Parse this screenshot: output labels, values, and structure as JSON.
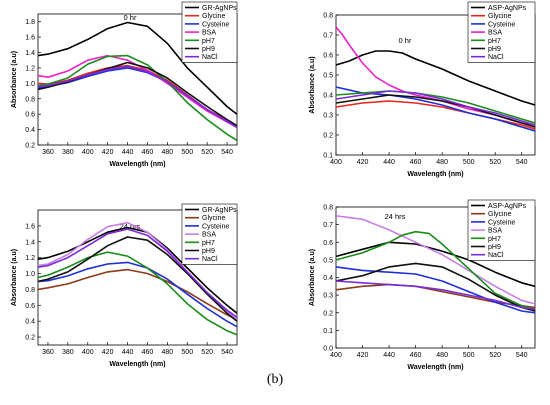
{
  "figure": {
    "label": "(b)"
  },
  "chart_data": [
    {
      "type": "line",
      "title": "0 hr",
      "xlabel": "Wavelength (nm)",
      "ylabel": "Absorbance (a.u)",
      "xlim": [
        350,
        550
      ],
      "ylim": [
        0.2,
        1.9
      ],
      "xticks": [
        360,
        380,
        400,
        420,
        440,
        460,
        480,
        500,
        520,
        540
      ],
      "yticks": [
        0.2,
        0.4,
        0.6,
        0.8,
        1.0,
        1.2,
        1.4,
        1.6,
        1.8
      ],
      "ytick_decimals": 1,
      "legend_position": "top-right",
      "series": [
        {
          "name": "GR-AgNPs",
          "color": "#000000",
          "x": [
            350,
            360,
            380,
            400,
            420,
            440,
            460,
            480,
            500,
            520,
            540,
            550
          ],
          "y": [
            1.36,
            1.38,
            1.45,
            1.57,
            1.71,
            1.79,
            1.74,
            1.52,
            1.2,
            0.95,
            0.7,
            0.6
          ]
        },
        {
          "name": "Glycine",
          "color": "#e8251d",
          "x": [
            350,
            360,
            380,
            400,
            420,
            440,
            460,
            480,
            500,
            520,
            540,
            550
          ],
          "y": [
            1.0,
            0.99,
            1.04,
            1.13,
            1.2,
            1.23,
            1.17,
            1.04,
            0.85,
            0.66,
            0.52,
            0.44
          ]
        },
        {
          "name": "Cysteine",
          "color": "#1f2fd6",
          "x": [
            350,
            360,
            380,
            400,
            420,
            440,
            460,
            480,
            500,
            520,
            540,
            550
          ],
          "y": [
            0.94,
            0.96,
            1.01,
            1.09,
            1.16,
            1.2,
            1.14,
            1.02,
            0.84,
            0.66,
            0.5,
            0.43
          ]
        },
        {
          "name": "BSA",
          "color": "#f020c8",
          "x": [
            350,
            360,
            380,
            400,
            420,
            440,
            460,
            480,
            500,
            520,
            540,
            550
          ],
          "y": [
            1.1,
            1.08,
            1.16,
            1.3,
            1.36,
            1.3,
            1.17,
            1.0,
            0.82,
            0.64,
            0.5,
            0.43
          ]
        },
        {
          "name": "pH7",
          "color": "#1a8c1a",
          "x": [
            350,
            360,
            380,
            400,
            420,
            440,
            460,
            480,
            500,
            520,
            540,
            550
          ],
          "y": [
            0.97,
            0.99,
            1.07,
            1.25,
            1.35,
            1.36,
            1.24,
            1.02,
            0.75,
            0.53,
            0.34,
            0.26
          ]
        },
        {
          "name": "pH9",
          "color": "#111111",
          "x": [
            350,
            360,
            380,
            400,
            420,
            440,
            460,
            480,
            500,
            520,
            540,
            550
          ],
          "y": [
            0.92,
            0.95,
            1.02,
            1.11,
            1.19,
            1.27,
            1.2,
            1.07,
            0.88,
            0.7,
            0.53,
            0.45
          ]
        },
        {
          "name": "NaCl",
          "color": "#7b2bd8",
          "x": [
            350,
            360,
            380,
            400,
            420,
            440,
            460,
            480,
            500,
            520,
            540,
            550
          ],
          "y": [
            0.96,
            0.97,
            1.03,
            1.11,
            1.18,
            1.22,
            1.15,
            1.02,
            0.84,
            0.66,
            0.51,
            0.43
          ]
        }
      ]
    },
    {
      "type": "line",
      "title": "0 hr",
      "xlabel": "Wavelength (nm)",
      "ylabel": "Absorbance (a.u)",
      "xlim": [
        400,
        550
      ],
      "ylim": [
        0.1,
        0.8
      ],
      "xticks": [
        400,
        420,
        440,
        460,
        480,
        500,
        520,
        540
      ],
      "yticks": [
        0.1,
        0.2,
        0.3,
        0.4,
        0.5,
        0.6,
        0.7,
        0.8
      ],
      "ytick_decimals": 1,
      "legend_position": "top-right",
      "series": [
        {
          "name": "ASP-AgNPs",
          "color": "#000000",
          "x": [
            400,
            410,
            420,
            430,
            440,
            450,
            460,
            480,
            500,
            520,
            540,
            550
          ],
          "y": [
            0.55,
            0.57,
            0.6,
            0.62,
            0.62,
            0.61,
            0.58,
            0.53,
            0.47,
            0.42,
            0.37,
            0.35
          ]
        },
        {
          "name": "Glycine",
          "color": "#e8251d",
          "x": [
            400,
            420,
            440,
            460,
            480,
            500,
            520,
            540,
            550
          ],
          "y": [
            0.34,
            0.36,
            0.37,
            0.36,
            0.34,
            0.31,
            0.28,
            0.25,
            0.23
          ]
        },
        {
          "name": "Cysteine",
          "color": "#1f2fd6",
          "x": [
            400,
            420,
            440,
            460,
            480,
            500,
            520,
            540,
            550
          ],
          "y": [
            0.44,
            0.41,
            0.4,
            0.38,
            0.35,
            0.31,
            0.28,
            0.24,
            0.22
          ]
        },
        {
          "name": "BSA",
          "color": "#f020c8",
          "x": [
            400,
            405,
            410,
            420,
            430,
            440,
            450,
            460,
            480,
            500,
            520,
            540,
            550
          ],
          "y": [
            0.74,
            0.7,
            0.65,
            0.56,
            0.49,
            0.45,
            0.42,
            0.4,
            0.37,
            0.33,
            0.3,
            0.26,
            0.25
          ]
        },
        {
          "name": "pH7",
          "color": "#1a8c1a",
          "x": [
            400,
            420,
            440,
            460,
            480,
            500,
            520,
            540,
            550
          ],
          "y": [
            0.4,
            0.41,
            0.42,
            0.41,
            0.39,
            0.36,
            0.32,
            0.28,
            0.26
          ]
        },
        {
          "name": "pH9",
          "color": "#111111",
          "x": [
            400,
            420,
            440,
            460,
            480,
            500,
            520,
            540,
            550
          ],
          "y": [
            0.36,
            0.38,
            0.4,
            0.39,
            0.37,
            0.34,
            0.3,
            0.26,
            0.24
          ]
        },
        {
          "name": "NaCl",
          "color": "#7b2bd8",
          "x": [
            400,
            420,
            440,
            460,
            480,
            500,
            520,
            540,
            550
          ],
          "y": [
            0.38,
            0.4,
            0.42,
            0.41,
            0.38,
            0.34,
            0.31,
            0.27,
            0.25
          ]
        }
      ]
    },
    {
      "type": "line",
      "title": "24 hrs",
      "xlabel": "Wavelength (nm)",
      "ylabel": "Absorbance (a.u)",
      "xlim": [
        350,
        550
      ],
      "ylim": [
        0.1,
        1.8
      ],
      "xticks": [
        360,
        380,
        400,
        420,
        440,
        460,
        480,
        500,
        520,
        540
      ],
      "yticks": [
        0.2,
        0.4,
        0.6,
        0.8,
        1.0,
        1.2,
        1.4,
        1.6
      ],
      "ytick_decimals": 1,
      "legend_position": "top-right",
      "series": [
        {
          "name": "GR-AgNPs",
          "color": "#000000",
          "x": [
            350,
            360,
            380,
            400,
            420,
            440,
            460,
            480,
            500,
            520,
            540,
            550
          ],
          "y": [
            1.18,
            1.2,
            1.28,
            1.4,
            1.52,
            1.58,
            1.52,
            1.32,
            1.07,
            0.82,
            0.6,
            0.5
          ]
        },
        {
          "name": "Glycine",
          "color": "#8b3a1a",
          "x": [
            350,
            360,
            380,
            400,
            420,
            440,
            460,
            480,
            500,
            520,
            540,
            550
          ],
          "y": [
            0.8,
            0.82,
            0.87,
            0.95,
            1.02,
            1.05,
            1.0,
            0.9,
            0.77,
            0.62,
            0.48,
            0.42
          ]
        },
        {
          "name": "Cysteine",
          "color": "#1f2fd6",
          "x": [
            350,
            360,
            380,
            400,
            420,
            440,
            460,
            480,
            500,
            520,
            540,
            550
          ],
          "y": [
            0.9,
            0.91,
            0.97,
            1.06,
            1.12,
            1.14,
            1.07,
            0.93,
            0.74,
            0.56,
            0.4,
            0.33
          ]
        },
        {
          "name": "BSA",
          "color": "#c77de6",
          "x": [
            350,
            360,
            380,
            400,
            420,
            440,
            460,
            480,
            500,
            520,
            540,
            550
          ],
          "y": [
            1.1,
            1.12,
            1.24,
            1.43,
            1.59,
            1.64,
            1.52,
            1.3,
            1.02,
            0.76,
            0.52,
            0.42
          ]
        },
        {
          "name": "pH7",
          "color": "#1a8c1a",
          "x": [
            350,
            360,
            380,
            400,
            420,
            440,
            460,
            480,
            500,
            520,
            540,
            550
          ],
          "y": [
            0.95,
            0.98,
            1.08,
            1.2,
            1.27,
            1.22,
            1.07,
            0.87,
            0.62,
            0.42,
            0.28,
            0.23
          ]
        },
        {
          "name": "pH9",
          "color": "#111111",
          "x": [
            350,
            360,
            380,
            400,
            420,
            440,
            460,
            480,
            500,
            520,
            540,
            550
          ],
          "y": [
            0.9,
            0.93,
            1.02,
            1.18,
            1.35,
            1.46,
            1.42,
            1.24,
            1.0,
            0.74,
            0.5,
            0.4
          ]
        },
        {
          "name": "NaCl",
          "color": "#7b2bd8",
          "x": [
            350,
            360,
            380,
            400,
            420,
            440,
            460,
            480,
            500,
            520,
            540,
            550
          ],
          "y": [
            1.08,
            1.1,
            1.2,
            1.35,
            1.5,
            1.56,
            1.48,
            1.28,
            1.02,
            0.76,
            0.54,
            0.45
          ]
        }
      ]
    },
    {
      "type": "line",
      "title": "24 hrs",
      "xlabel": "Wavelength (nm)",
      "ylabel": "Absorbance (a.u)",
      "xlim": [
        400,
        550
      ],
      "ylim": [
        0.0,
        0.8
      ],
      "xticks": [
        400,
        420,
        440,
        460,
        480,
        500,
        520,
        540
      ],
      "yticks": [
        0.0,
        0.1,
        0.2,
        0.3,
        0.4,
        0.5,
        0.6,
        0.7,
        0.8
      ],
      "ytick_decimals": 1,
      "legend_position": "top-right",
      "series": [
        {
          "name": "ASP-AgNPs",
          "color": "#000000",
          "x": [
            400,
            420,
            440,
            460,
            480,
            500,
            520,
            540,
            550
          ],
          "y": [
            0.52,
            0.56,
            0.6,
            0.59,
            0.55,
            0.5,
            0.43,
            0.37,
            0.35
          ]
        },
        {
          "name": "Glycine",
          "color": "#8b3a1a",
          "x": [
            400,
            420,
            440,
            460,
            480,
            500,
            520,
            540,
            550
          ],
          "y": [
            0.33,
            0.35,
            0.36,
            0.35,
            0.32,
            0.29,
            0.26,
            0.24,
            0.23
          ]
        },
        {
          "name": "Cysteine",
          "color": "#1f2fd6",
          "x": [
            400,
            420,
            440,
            460,
            480,
            500,
            520,
            540,
            550
          ],
          "y": [
            0.46,
            0.44,
            0.43,
            0.42,
            0.38,
            0.32,
            0.26,
            0.21,
            0.2
          ]
        },
        {
          "name": "BSA",
          "color": "#c77de6",
          "x": [
            400,
            420,
            440,
            460,
            480,
            500,
            520,
            540,
            550
          ],
          "y": [
            0.75,
            0.73,
            0.67,
            0.6,
            0.53,
            0.44,
            0.35,
            0.27,
            0.25
          ]
        },
        {
          "name": "pH7",
          "color": "#1a8c1a",
          "x": [
            400,
            420,
            440,
            450,
            460,
            470,
            480,
            500,
            520,
            540,
            550
          ],
          "y": [
            0.5,
            0.54,
            0.6,
            0.64,
            0.66,
            0.65,
            0.59,
            0.45,
            0.31,
            0.24,
            0.22
          ]
        },
        {
          "name": "pH9",
          "color": "#111111",
          "x": [
            400,
            420,
            440,
            460,
            480,
            500,
            520,
            540,
            550
          ],
          "y": [
            0.38,
            0.41,
            0.46,
            0.48,
            0.46,
            0.39,
            0.3,
            0.23,
            0.21
          ]
        },
        {
          "name": "NaCl",
          "color": "#7b2bd8",
          "x": [
            400,
            420,
            440,
            460,
            480,
            500,
            520,
            540,
            550
          ],
          "y": [
            0.38,
            0.37,
            0.36,
            0.35,
            0.33,
            0.3,
            0.27,
            0.23,
            0.22
          ]
        }
      ]
    }
  ]
}
